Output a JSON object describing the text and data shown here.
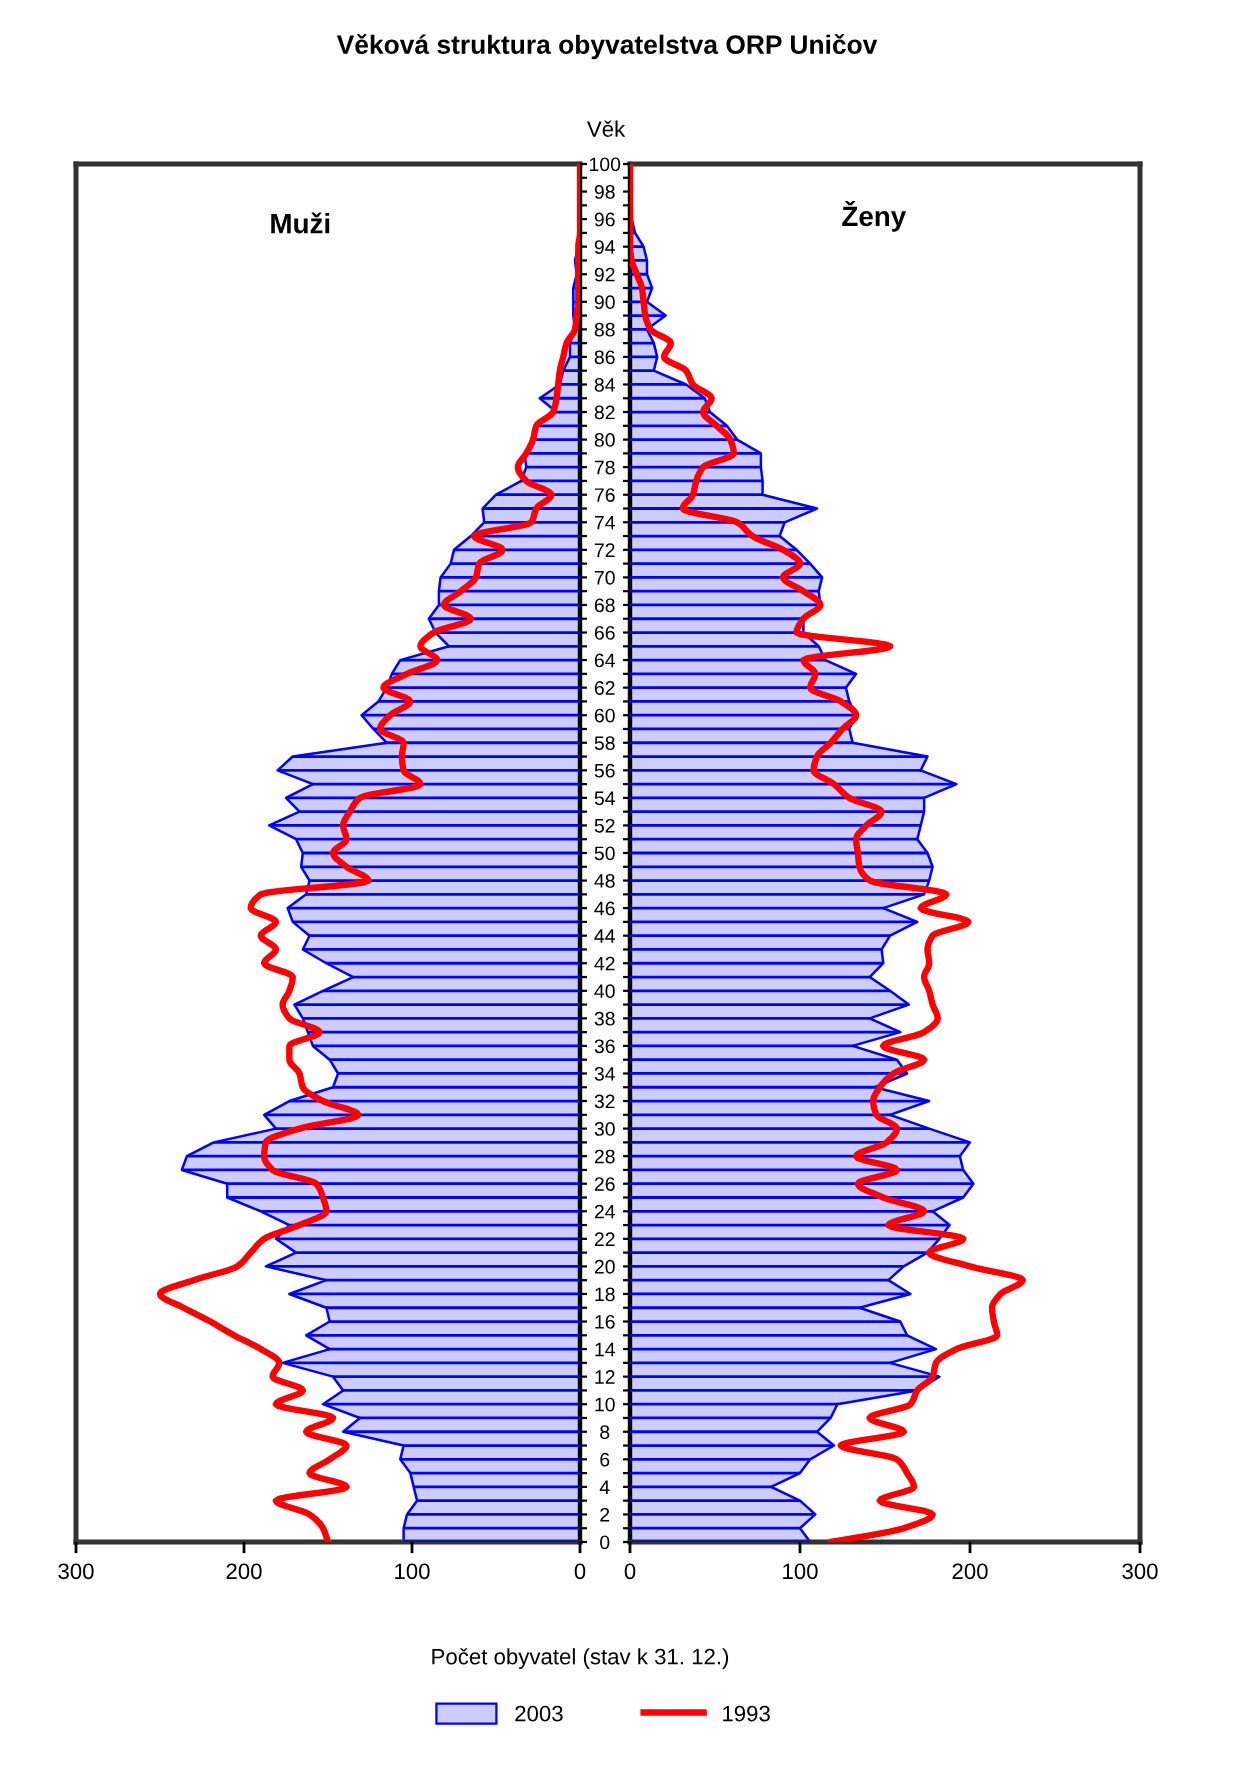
{
  "chart_data": [
    {
      "type": "area",
      "orientation": "horizontal",
      "title": "Věková struktura obyvatelstva ORP Uničov",
      "xlabel": "Počet obyvatel (stav k 31. 12.)",
      "annotations": [
        "Muži"
      ],
      "legend": "bottom",
      "tick_labels": "x",
      "grid": "y",
      "xlim": [
        300,
        0
      ],
      "xticks": [
        300,
        200,
        100,
        0
      ],
      "categories": [
        "100",
        null,
        "98",
        null,
        "96",
        null,
        "94",
        null,
        "92",
        null,
        "90",
        null,
        "88",
        null,
        "86",
        null,
        "84",
        null,
        "82",
        null,
        "80",
        null,
        "78",
        null,
        "76",
        null,
        "74",
        null,
        "72",
        null,
        "70",
        null,
        "68",
        null,
        "66",
        null,
        "64",
        null,
        "62",
        null,
        "60",
        null,
        "58",
        null,
        "56",
        null,
        "54",
        null,
        "52",
        null,
        "50",
        null,
        "48",
        null,
        "46",
        null,
        "44",
        null,
        "42",
        null,
        "40",
        null,
        "38",
        null,
        "36",
        null,
        "34",
        null,
        "32",
        null,
        "30",
        null,
        "28",
        null,
        "26",
        null,
        "24",
        null,
        "22",
        null,
        "20",
        null,
        "18",
        null,
        "16",
        null,
        "14",
        null,
        "12",
        null,
        "10",
        null,
        "8",
        null,
        "6",
        null,
        "4",
        null,
        "2",
        null,
        "0"
      ],
      "series": [
        {
          "name": "2003",
          "color": "#ccccff",
          "values": [
            0,
            0,
            0,
            0,
            0,
            0,
            1,
            3,
            2,
            4,
            4,
            4,
            3,
            6,
            6,
            10,
            12,
            24,
            14,
            27,
            27,
            33,
            32,
            35,
            50,
            58,
            57,
            65,
            75,
            77,
            83,
            84,
            84,
            90,
            86,
            78,
            107,
            112,
            115,
            120,
            130,
            123,
            115,
            171,
            180,
            159,
            175,
            167,
            185,
            169,
            165,
            166,
            161,
            163,
            174,
            171,
            161,
            165,
            151,
            135,
            153,
            170,
            165,
            162,
            159,
            149,
            144,
            147,
            173,
            188,
            181,
            218,
            234,
            237,
            210,
            210,
            190,
            173,
            181,
            169,
            187,
            151,
            173,
            151,
            149,
            163,
            149,
            177,
            147,
            141,
            153,
            131,
            141,
            105,
            107,
            101,
            99,
            97,
            103,
            105,
            105
          ]
        },
        {
          "name": "1993",
          "type": "line",
          "color": "#ff0000",
          "values": [
            0,
            0,
            0,
            0,
            0,
            0,
            1,
            1,
            1,
            1,
            1,
            2,
            3,
            8,
            10,
            12,
            13,
            14,
            16,
            26,
            28,
            32,
            37,
            32,
            17,
            26,
            29,
            63,
            46,
            60,
            62,
            71,
            81,
            65,
            87,
            95,
            85,
            103,
            117,
            101,
            113,
            119,
            105,
            106,
            105,
            95,
            131,
            137,
            141,
            139,
            147,
            139,
            126,
            190,
            196,
            181,
            190,
            181,
            188,
            171,
            173,
            177,
            173,
            155,
            173,
            173,
            167,
            165,
            153,
            132,
            167,
            187,
            188,
            183,
            157,
            153,
            151,
            167,
            188,
            196,
            204,
            230,
            250,
            236,
            220,
            206,
            190,
            179,
            183,
            165,
            181,
            147,
            163,
            139,
            149,
            161,
            139,
            181,
            161,
            153,
            150
          ]
        }
      ]
    },
    {
      "type": "area",
      "orientation": "horizontal",
      "ylabel": "Věk",
      "annotations": [
        "Ženy"
      ],
      "grid": "y",
      "xlim": [
        0,
        300
      ],
      "xticks": [
        0,
        100,
        200,
        300
      ],
      "categories": [
        "100",
        null,
        "98",
        null,
        "96",
        null,
        "94",
        null,
        "92",
        null,
        "90",
        null,
        "88",
        null,
        "86",
        null,
        "84",
        null,
        "82",
        null,
        "80",
        null,
        "78",
        null,
        "76",
        null,
        "74",
        null,
        "72",
        null,
        "70",
        null,
        "68",
        null,
        "66",
        null,
        "64",
        null,
        "62",
        null,
        "60",
        null,
        "58",
        null,
        "56",
        null,
        "54",
        null,
        "52",
        null,
        "50",
        null,
        "48",
        null,
        "46",
        null,
        "44",
        null,
        "42",
        null,
        "40",
        null,
        "38",
        null,
        "36",
        null,
        "34",
        null,
        "32",
        null,
        "30",
        null,
        "28",
        null,
        "26",
        null,
        "24",
        null,
        "22",
        null,
        "20",
        null,
        "18",
        null,
        "16",
        null,
        "14",
        null,
        "12",
        null,
        "10",
        null,
        "8",
        null,
        "6",
        null,
        "4",
        null,
        "2",
        null,
        "0"
      ],
      "series": [
        {
          "name": "2003",
          "color": "#ccccff",
          "values": [
            0,
            0,
            0,
            0,
            1,
            3,
            8,
            10,
            10,
            13,
            10,
            21,
            10,
            14,
            16,
            14,
            33,
            44,
            47,
            57,
            63,
            77,
            77,
            78,
            78,
            110,
            91,
            88,
            98,
            106,
            113,
            111,
            112,
            102,
            102,
            111,
            115,
            133,
            127,
            129,
            133,
            129,
            131,
            175,
            171,
            192,
            173,
            173,
            171,
            169,
            175,
            178,
            176,
            173,
            149,
            169,
            153,
            148,
            149,
            141,
            153,
            164,
            141,
            159,
            131,
            157,
            163,
            144,
            176,
            153,
            176,
            200,
            194,
            196,
            202,
            196,
            178,
            188,
            182,
            175,
            161,
            152,
            165,
            135,
            159,
            163,
            180,
            153,
            182,
            169,
            122,
            118,
            110,
            120,
            106,
            100,
            83,
            100,
            109,
            100,
            106
          ]
        },
        {
          "name": "1993",
          "type": "line",
          "color": "#ff0000",
          "values": [
            0,
            0,
            0,
            0,
            0,
            0,
            0,
            1,
            4,
            7,
            8,
            9,
            12,
            24,
            20,
            33,
            37,
            48,
            43,
            51,
            59,
            61,
            43,
            39,
            37,
            31,
            63,
            72,
            90,
            100,
            90,
            102,
            112,
            102,
            98,
            153,
            102,
            109,
            106,
            124,
            133,
            125,
            118,
            110,
            108,
            120,
            129,
            148,
            139,
            133,
            134,
            135,
            141,
            186,
            171,
            199,
            178,
            175,
            176,
            173,
            176,
            178,
            181,
            173,
            149,
            173,
            155,
            147,
            143,
            145,
            157,
            151,
            133,
            157,
            134,
            149,
            173,
            152,
            196,
            176,
            200,
            231,
            218,
            213,
            214,
            216,
            192,
            180,
            178,
            169,
            165,
            141,
            161,
            124,
            157,
            163,
            167,
            147,
            178,
            161,
            118
          ]
        }
      ]
    }
  ]
}
